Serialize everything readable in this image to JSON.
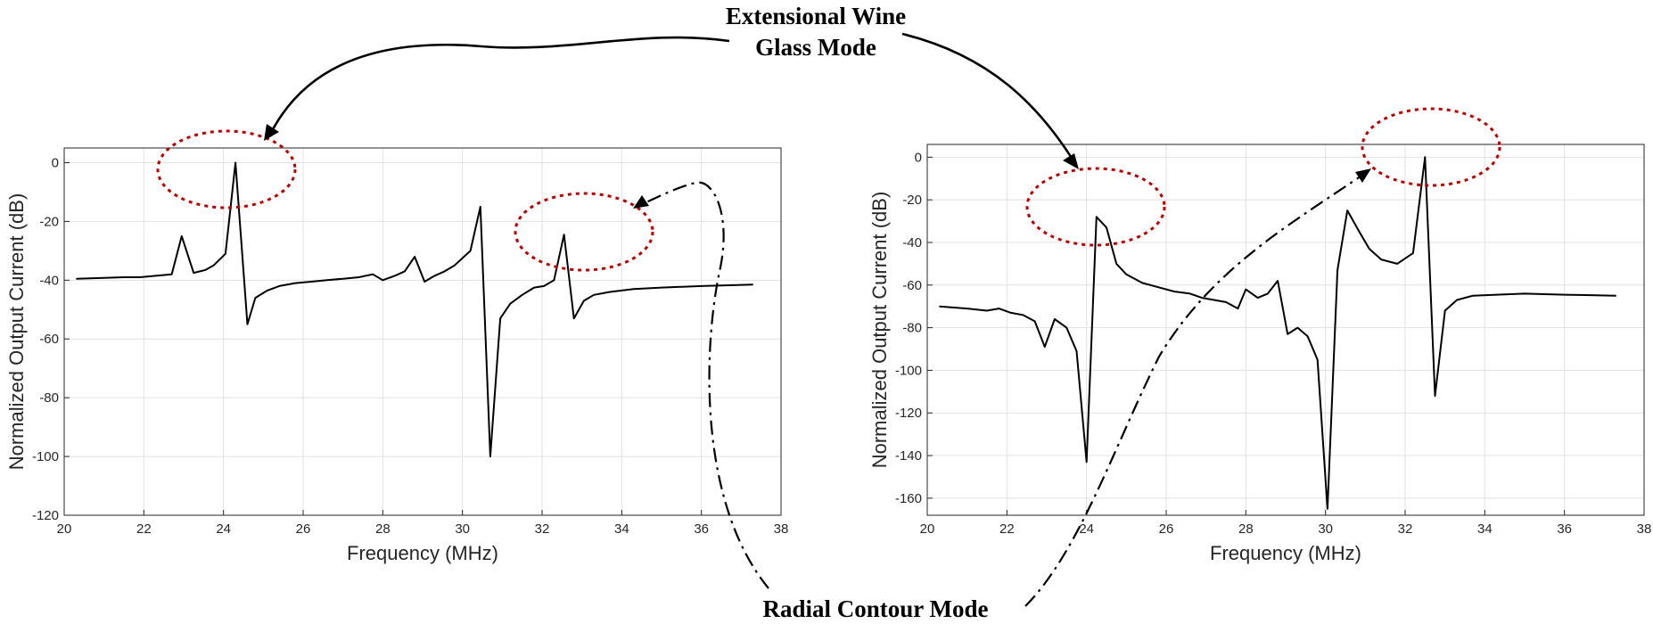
{
  "chart_data": [
    {
      "type": "line",
      "xlabel": "Frequency (MHz)",
      "ylabel": "Normalized Output Current (dB)",
      "xlim": [
        20,
        38
      ],
      "ylim": [
        -120,
        5
      ],
      "xticks": [
        20,
        22,
        24,
        26,
        28,
        30,
        32,
        34,
        36,
        38
      ],
      "yticks": [
        0,
        -20,
        -40,
        -60,
        -80,
        -100,
        -120
      ],
      "grid": true,
      "series": [
        {
          "x": [
            20.3,
            21.5,
            21.9,
            22.3,
            22.7,
            22.95,
            23.25,
            23.55,
            23.75,
            24.05,
            24.3,
            24.6,
            24.8,
            25.1,
            25.4,
            25.8,
            26.2,
            26.6,
            27.0,
            27.4,
            27.75,
            28.0,
            28.3,
            28.55,
            28.8,
            29.05,
            29.3,
            29.55,
            29.8,
            30.2,
            30.45,
            30.7,
            30.95,
            31.2,
            31.5,
            31.8,
            32.05,
            32.3,
            32.55,
            32.8,
            33.05,
            33.3,
            33.7,
            34.3,
            35.0,
            36.0,
            37.3
          ],
          "y": [
            -39.5,
            -39,
            -39,
            -38.5,
            -38,
            -25,
            -37.5,
            -36.5,
            -35,
            -31,
            0,
            -55,
            -46,
            -43.5,
            -42,
            -41,
            -40.5,
            -40,
            -39.5,
            -39,
            -38,
            -40,
            -38.5,
            -37,
            -32,
            -40.5,
            -38.5,
            -37,
            -35,
            -30,
            -15,
            -100,
            -53,
            -48,
            -45,
            -42.5,
            -42,
            -40,
            -24.5,
            -53,
            -47,
            -45,
            -44,
            -43,
            -42.5,
            -42,
            -41.5
          ]
        }
      ]
    },
    {
      "type": "line",
      "xlabel": "Frequency (MHz)",
      "ylabel": "Normalized Output Current (dB)",
      "xlim": [
        20,
        38
      ],
      "ylim": [
        -168,
        6
      ],
      "xticks": [
        20,
        22,
        24,
        26,
        28,
        30,
        32,
        34,
        36,
        38
      ],
      "yticks": [
        0,
        -20,
        -40,
        -60,
        -80,
        -100,
        -120,
        -140,
        -160
      ],
      "grid": true,
      "series": [
        {
          "x": [
            20.3,
            21.0,
            21.5,
            21.8,
            22.1,
            22.4,
            22.7,
            22.95,
            23.2,
            23.5,
            23.75,
            24.0,
            24.25,
            24.5,
            24.75,
            25.0,
            25.4,
            25.8,
            26.2,
            26.6,
            26.9,
            27.2,
            27.5,
            27.8,
            28.0,
            28.3,
            28.55,
            28.8,
            29.05,
            29.3,
            29.55,
            29.8,
            30.05,
            30.3,
            30.55,
            30.85,
            31.1,
            31.4,
            31.8,
            32.2,
            32.5,
            32.75,
            33.0,
            33.3,
            33.7,
            34.3,
            35.0,
            36.0,
            37.3
          ],
          "y": [
            -70,
            -71,
            -72,
            -71,
            -73,
            -74,
            -77,
            -89,
            -76,
            -80,
            -91,
            -143,
            -28,
            -33,
            -50,
            -55,
            -59,
            -61,
            -63,
            -64,
            -66,
            -67,
            -68,
            -71,
            -62,
            -66,
            -64,
            -58,
            -83,
            -80,
            -84,
            -95,
            -165,
            -53,
            -25,
            -35,
            -43,
            -48,
            -50,
            -45,
            0,
            -112,
            -72,
            -67,
            -65,
            -64.5,
            -64,
            -64.5,
            -65
          ]
        }
      ]
    }
  ],
  "annotations": {
    "top_line1": "Extensional Wine",
    "top_line2": "Glass Mode",
    "bottom": "Radial Contour Mode"
  },
  "colors": {
    "curve": "#000000",
    "highlight_ellipse": "#c00000",
    "grid": "#e1e1e1"
  }
}
